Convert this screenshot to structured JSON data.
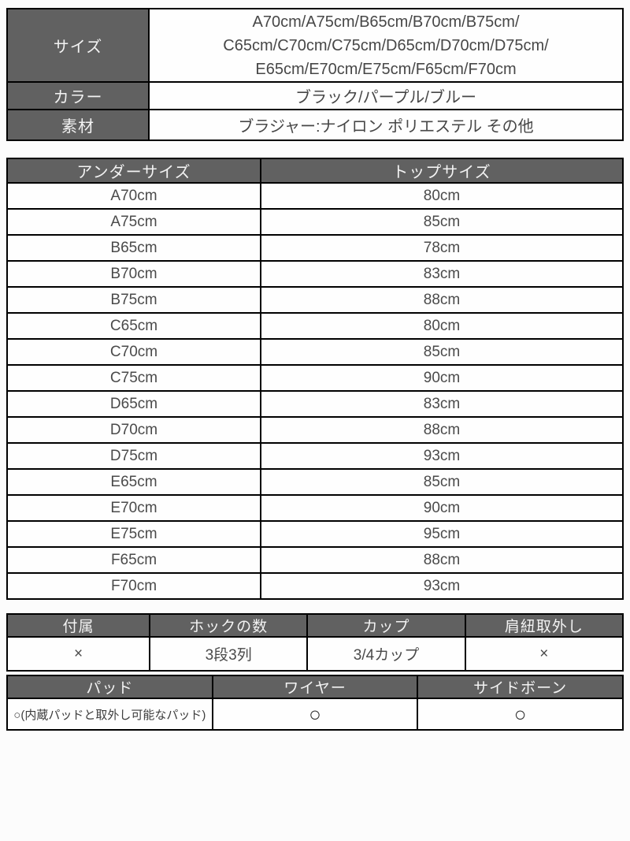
{
  "colors": {
    "header_bg": "#616161",
    "header_text": "#f3f3f3",
    "border": "#000000",
    "cell_text": "#404040",
    "page_bg": "#fcfcfc"
  },
  "spec_table": {
    "rows": {
      "size": {
        "label": "サイズ",
        "value_lines": [
          "A70cm/A75cm/B65cm/B70cm/B75cm/",
          "C65cm/C70cm/C75cm/D65cm/D70cm/D75cm/",
          "E65cm/E70cm/E75cm/F65cm/F70cm"
        ]
      },
      "color": {
        "label": "カラー",
        "value": "ブラック/パープル/ブルー"
      },
      "material": {
        "label": "素材",
        "value": "ブラジャー:ナイロン ポリエステル その他"
      }
    }
  },
  "size_table": {
    "headers": [
      "アンダーサイズ",
      "トップサイズ"
    ],
    "rows": [
      [
        "A70cm",
        "80cm"
      ],
      [
        "A75cm",
        "85cm"
      ],
      [
        "B65cm",
        "78cm"
      ],
      [
        "B70cm",
        "83cm"
      ],
      [
        "B75cm",
        "88cm"
      ],
      [
        "C65cm",
        "80cm"
      ],
      [
        "C70cm",
        "85cm"
      ],
      [
        "C75cm",
        "90cm"
      ],
      [
        "D65cm",
        "83cm"
      ],
      [
        "D70cm",
        "88cm"
      ],
      [
        "D75cm",
        "93cm"
      ],
      [
        "E65cm",
        "85cm"
      ],
      [
        "E70cm",
        "90cm"
      ],
      [
        "E75cm",
        "95cm"
      ],
      [
        "F65cm",
        "88cm"
      ],
      [
        "F70cm",
        "93cm"
      ]
    ]
  },
  "feature_table_1": {
    "headers": [
      "付属",
      "ホックの数",
      "カップ",
      "肩紐取外し"
    ],
    "values": [
      "×",
      "3段3列",
      "3/4カップ",
      "×"
    ]
  },
  "feature_table_2": {
    "headers": [
      "パッド",
      "ワイヤー",
      "サイドボーン"
    ],
    "values": [
      "○(内蔵パッドと取外し可能なパッド)",
      "○",
      "○"
    ]
  }
}
